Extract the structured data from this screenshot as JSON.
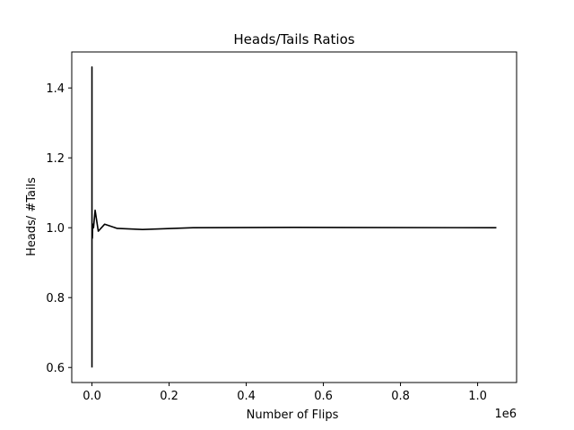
{
  "chart_data": {
    "type": "line",
    "title": "Heads/Tails Ratios",
    "xlabel": "Number of Flips",
    "ylabel": "Heads/ #Tails",
    "x_offset_label": "1e6",
    "xlim": [
      -0.0524,
      1.101
    ],
    "ylim": [
      0.557,
      1.503
    ],
    "x_ticks": [
      0.0,
      0.2,
      0.4,
      0.6,
      0.8,
      1.0
    ],
    "x_tick_labels": [
      "0.0",
      "0.2",
      "0.4",
      "0.6",
      "0.8",
      "1.0"
    ],
    "y_ticks": [
      0.6,
      0.8,
      1.0,
      1.2,
      1.4
    ],
    "y_tick_labels": [
      "0.6",
      "0.8",
      "1.0",
      "1.2",
      "1.4"
    ],
    "grid": false,
    "line_color": "#000000",
    "series": [
      {
        "x": [
          1e-06,
          2e-06,
          4e-06,
          8e-06,
          1.6e-05,
          3.2e-05,
          6.4e-05,
          0.000128,
          0.000256,
          0.000512,
          0.001024,
          0.002048,
          0.004096,
          0.008192,
          0.016384,
          0.032768,
          0.065536,
          0.131072,
          0.262144,
          0.524288,
          1.048576
        ],
        "y": [
          0.6,
          1.46,
          0.97,
          1.42,
          1.12,
          1.01,
          0.98,
          1.03,
          0.99,
          1.0,
          0.97,
          1.01,
          1.0,
          1.05,
          0.99,
          1.01,
          0.998,
          0.995,
          1.0,
          1.001,
          1.0
        ]
      }
    ]
  }
}
